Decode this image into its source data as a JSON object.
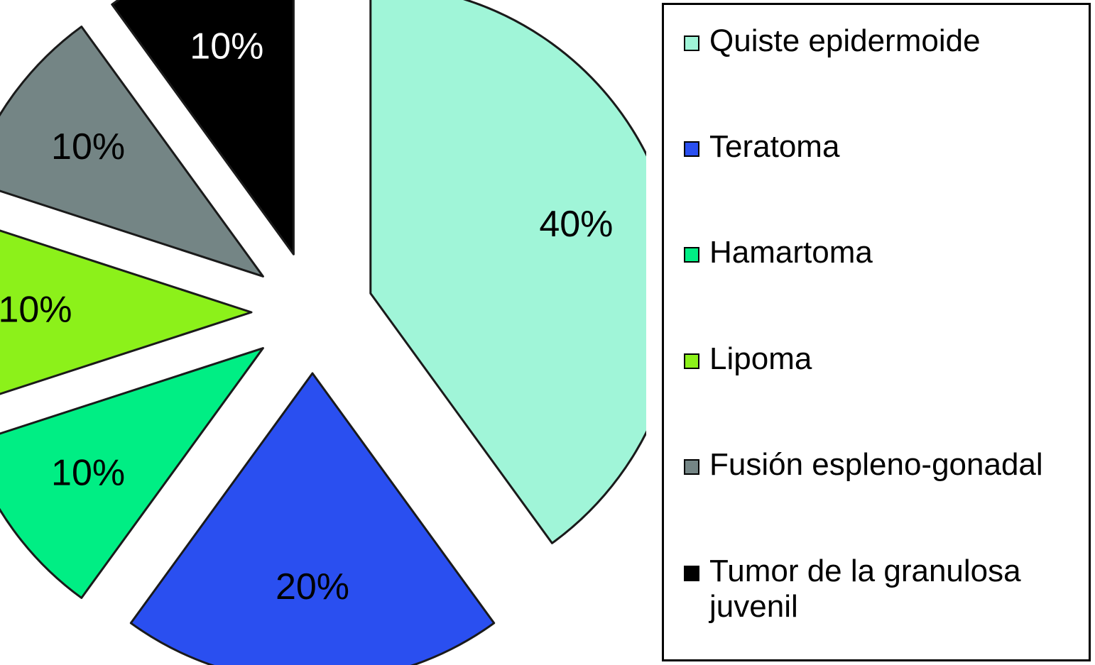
{
  "chart_data": {
    "type": "pie",
    "title": "",
    "legend_position": "right",
    "slices": [
      {
        "label": "Quiste epidermoide",
        "value": 40,
        "display": "40%",
        "color": "#a0f5d8",
        "label_color": "#000000"
      },
      {
        "label": "Teratoma",
        "value": 20,
        "display": "20%",
        "color": "#2a4ff0",
        "label_color": "#000000"
      },
      {
        "label": "Hamartoma",
        "value": 10,
        "display": "10%",
        "color": "#00ee84",
        "label_color": "#000000"
      },
      {
        "label": "Lipoma",
        "value": 10,
        "display": "10%",
        "color": "#8cf11a",
        "label_color": "#000000"
      },
      {
        "label": "Fusión espleno-gonadal",
        "value": 10,
        "display": "10%",
        "color": "#748585",
        "label_color": "#000000"
      },
      {
        "label": "Tumor de la granulosa juvenil",
        "value": 10,
        "display": "10%",
        "color": "#000000",
        "label_color": "#ffffff"
      }
    ]
  }
}
